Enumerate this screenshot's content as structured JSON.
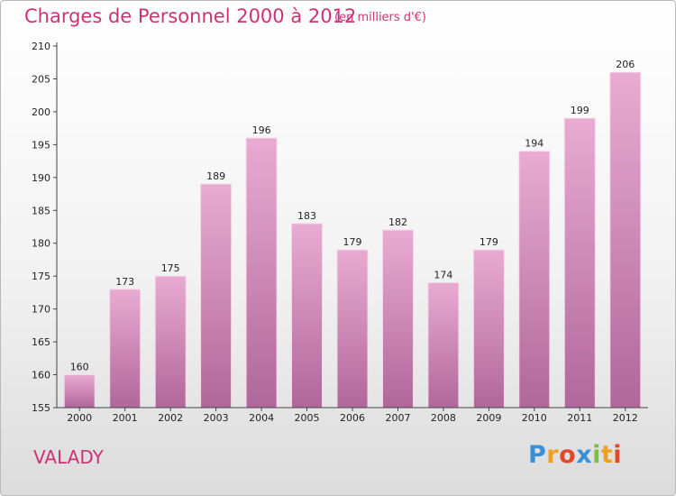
{
  "header": {
    "title": "Charges de Personnel 2000 à 2012",
    "unit_note": "(en milliers d'€)"
  },
  "footer": {
    "commune": "VALADY",
    "logo_letters": [
      "P",
      "r",
      "o",
      "x",
      "i",
      "t",
      "i"
    ],
    "logo_colors": [
      "#3a8fd6",
      "#f0a020",
      "#e04a2a",
      "#3a8fd6",
      "#7cc043",
      "#f0a020",
      "#e04a2a"
    ]
  },
  "colors": {
    "bar_top": "#e9abd2",
    "bar_bottom": "#b0679b",
    "axis": "#444444",
    "accent": "#cc3377"
  },
  "chart_data": {
    "type": "bar",
    "categories": [
      "2000",
      "2001",
      "2002",
      "2003",
      "2004",
      "2005",
      "2006",
      "2007",
      "2008",
      "2009",
      "2010",
      "2011",
      "2012"
    ],
    "values": [
      160,
      173,
      175,
      189,
      196,
      183,
      179,
      182,
      174,
      179,
      194,
      199,
      206
    ],
    "ylim": [
      155,
      210
    ],
    "yticks": [
      155,
      160,
      165,
      170,
      175,
      180,
      185,
      190,
      195,
      200,
      205,
      210
    ],
    "grid": false,
    "legend": "none",
    "xlabel": "",
    "ylabel": ""
  }
}
